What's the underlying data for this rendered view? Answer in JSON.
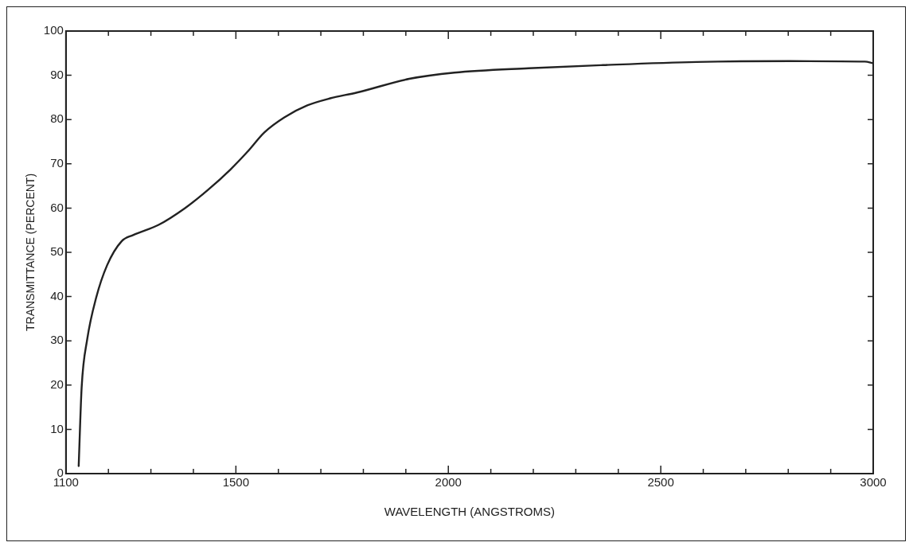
{
  "chart_data": {
    "type": "line",
    "xlabel": "WAVELENGTH (ANGSTROMS)",
    "ylabel": "TRANSMITTANCE (PERCENT)",
    "x": [
      1130,
      1137,
      1150,
      1171,
      1197,
      1231,
      1258,
      1318,
      1379,
      1433,
      1487,
      1527,
      1567,
      1614,
      1668,
      1722,
      1785,
      1908,
      2014,
      2189,
      2364,
      2584,
      2804,
      2980,
      3000
    ],
    "series": [
      {
        "color": "#222222",
        "values": [
          1.7,
          19.5,
          30.3,
          39.7,
          47.1,
          52.5,
          53.9,
          56.2,
          59.9,
          64,
          68.7,
          72.7,
          77.1,
          80.5,
          83.2,
          84.8,
          86.1,
          89.2,
          90.6,
          91.6,
          92.3,
          93.0,
          93.2,
          93.1,
          92.7
        ]
      }
    ],
    "xlim": [
      1100,
      3000
    ],
    "xticks": [
      1100,
      {
        "value": 1200,
        "label": null
      },
      {
        "value": 1300,
        "label": null
      },
      {
        "value": 1400,
        "label": null
      },
      1500,
      {
        "value": 1600,
        "label": null
      },
      {
        "value": 1700,
        "label": null
      },
      {
        "value": 1800,
        "label": null
      },
      {
        "value": 1900,
        "label": null
      },
      2000,
      {
        "value": 2100,
        "label": null
      },
      {
        "value": 2200,
        "label": null
      },
      {
        "value": 2300,
        "label": null
      },
      {
        "value": 2400,
        "label": null
      },
      2500,
      {
        "value": 2600,
        "label": null
      },
      {
        "value": 2700,
        "label": null
      },
      {
        "value": 2800,
        "label": null
      },
      {
        "value": 2900,
        "label": null
      },
      3000
    ],
    "ylim": [
      0,
      100
    ],
    "yticks": [
      0,
      10,
      20,
      30,
      40,
      50,
      60,
      70,
      80,
      90,
      100
    ],
    "grid": false,
    "legend": false,
    "marker": "none",
    "line_style": "solid"
  }
}
